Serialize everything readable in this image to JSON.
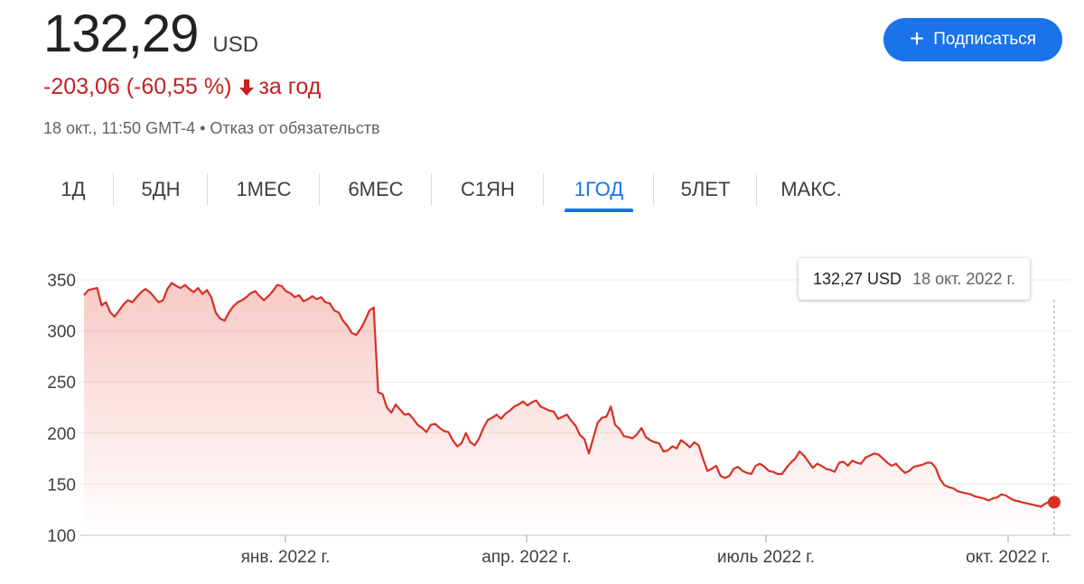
{
  "quote": {
    "price": "132,29",
    "currency": "USD",
    "change_text": "-203,06 (-60,55 %)",
    "period_text": "за год",
    "timestamp": "18 окт., 11:50 GMT-4",
    "separator": "•",
    "disclaimer": "Отказ от обязательств"
  },
  "subscribe": {
    "label": "Подписаться",
    "icon": "plus-icon"
  },
  "tabs": [
    {
      "label": "1Д"
    },
    {
      "label": "5ДН"
    },
    {
      "label": "1МЕС"
    },
    {
      "label": "6МЕС"
    },
    {
      "label": "С1ЯН"
    },
    {
      "label": "1ГОД",
      "active": true
    },
    {
      "label": "5ЛЕТ"
    },
    {
      "label": "МАКС."
    }
  ],
  "tooltip": {
    "price": "132,27 USD",
    "date": "18 окт. 2022 г."
  },
  "colors": {
    "accent": "#1a73e8",
    "negative": "#c5221f",
    "line": "#d93025",
    "text": "#202124",
    "muted": "#5f6368"
  },
  "chart_data": {
    "type": "line",
    "title": "",
    "xlabel": "",
    "ylabel": "",
    "ylim": [
      100,
      350
    ],
    "yticks": [
      "350",
      "300",
      "250",
      "200",
      "150",
      "100"
    ],
    "xticks": [
      "янв. 2022 г.",
      "апр. 2022 г.",
      "июль 2022 г.",
      "окт. 2022 г."
    ],
    "grid": true,
    "x_start": "2021-10-18",
    "x_end": "2022-10-18",
    "series": [
      {
        "values": [
          335,
          340,
          341,
          342,
          325,
          328,
          318,
          314,
          320,
          326,
          330,
          328,
          333,
          338,
          341,
          338,
          333,
          328,
          330,
          341,
          347,
          344,
          342,
          345,
          341,
          338,
          342,
          336,
          340,
          333,
          318,
          312,
          310,
          318,
          324,
          328,
          330,
          333,
          337,
          339,
          334,
          330,
          334,
          339,
          345,
          344,
          339,
          337,
          333,
          335,
          329,
          331,
          334,
          331,
          333,
          328,
          327,
          320,
          318,
          310,
          305,
          298,
          296,
          302,
          310,
          320,
          323,
          240,
          238,
          225,
          220,
          228,
          223,
          218,
          219,
          214,
          208,
          205,
          201,
          208,
          209,
          205,
          202,
          201,
          193,
          187,
          190,
          200,
          191,
          188,
          195,
          205,
          213,
          215,
          218,
          214,
          219,
          222,
          226,
          228,
          231,
          227,
          230,
          232,
          226,
          224,
          222,
          221,
          214,
          216,
          218,
          212,
          207,
          198,
          194,
          180,
          195,
          210,
          215,
          216,
          226,
          208,
          204,
          197,
          196,
          195,
          199,
          205,
          196,
          193,
          191,
          190,
          182,
          183,
          187,
          185,
          193,
          190,
          186,
          191,
          188,
          175,
          163,
          165,
          168,
          158,
          156,
          158,
          165,
          167,
          163,
          161,
          160,
          168,
          170,
          167,
          163,
          162,
          160,
          160,
          166,
          171,
          175,
          182,
          178,
          172,
          166,
          170,
          168,
          165,
          164,
          162,
          171,
          172,
          168,
          173,
          171,
          170,
          176,
          178,
          180,
          179,
          175,
          171,
          168,
          170,
          165,
          161,
          163,
          167,
          168,
          169,
          171,
          171,
          166,
          155,
          149,
          147,
          146,
          143,
          142,
          141,
          140,
          138,
          137,
          136,
          134,
          136,
          137,
          140,
          139,
          136,
          134,
          133,
          132,
          131,
          130,
          129,
          128,
          131,
          133,
          132.27
        ]
      }
    ],
    "last_point": {
      "value": 132.27
    }
  }
}
